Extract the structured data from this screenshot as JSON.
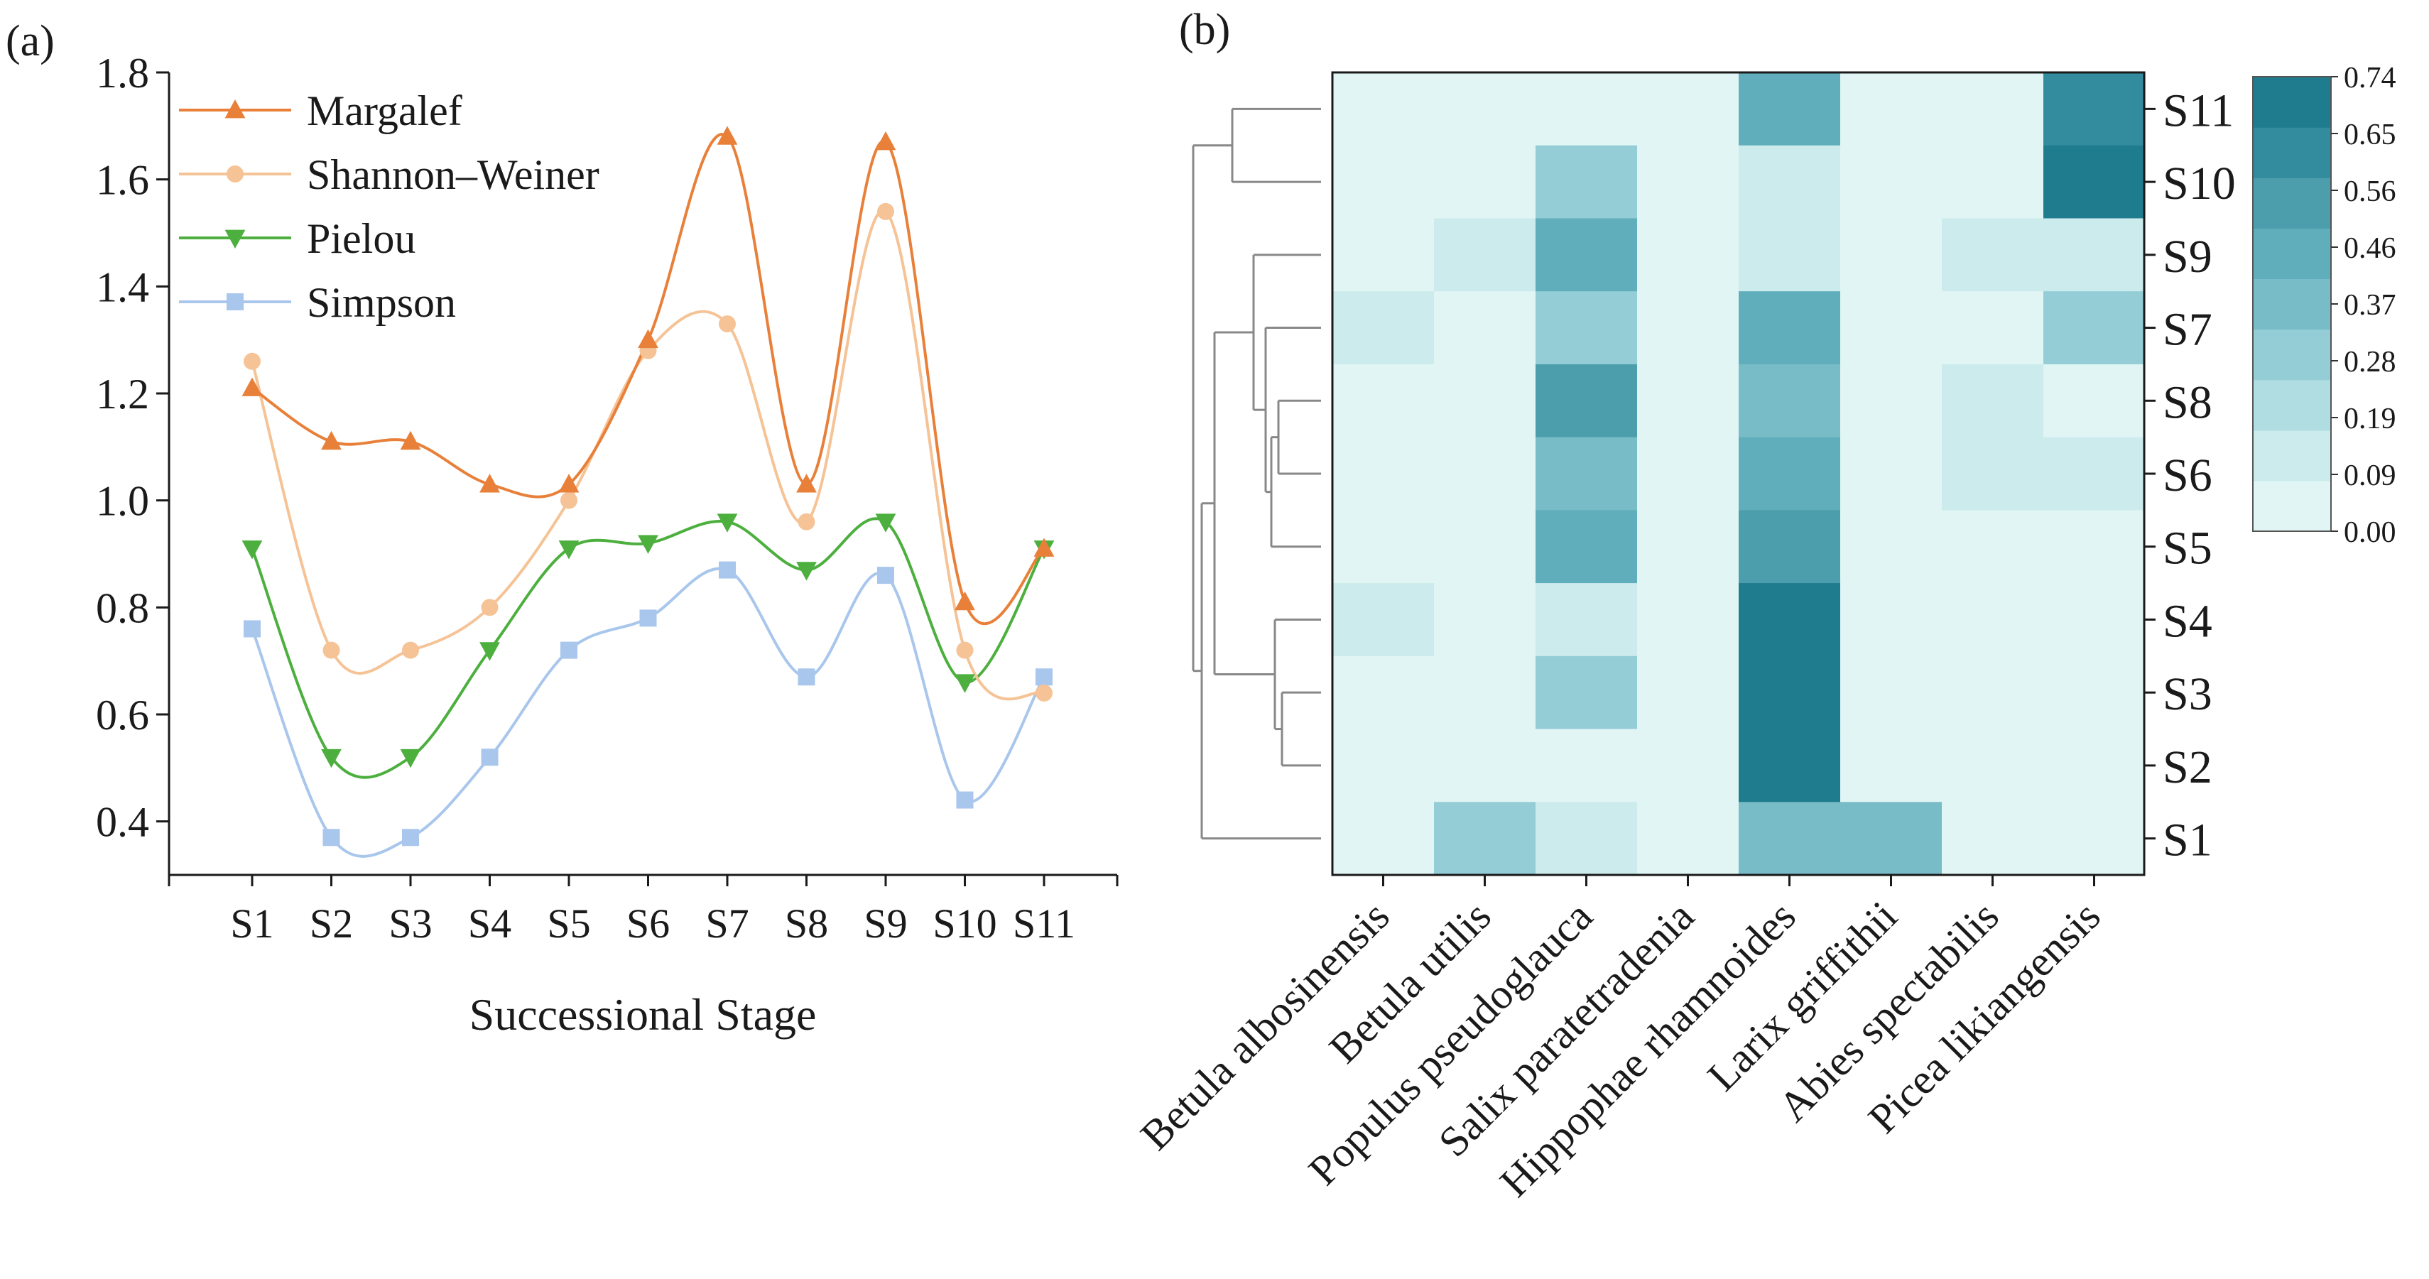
{
  "panel_labels": {
    "a": "(a)",
    "b": "(b)"
  },
  "colors": {
    "Margalef": "#e8803a",
    "Shannon–Weiner": "#f5c396",
    "Pielou": "#4caf3e",
    "Simpson": "#a9c6ec",
    "dendrogram": "#888888",
    "heat_scale": [
      "#e2f5f5",
      "#cbebec",
      "#b0dde2",
      "#94cdd6",
      "#78bcc8",
      "#60aebb",
      "#4c9ead",
      "#338c9e",
      "#1f7c8e"
    ]
  },
  "chart_data": [
    {
      "type": "line",
      "panel": "(a)",
      "title": "",
      "xlabel": "Successional Stage",
      "ylabel": "",
      "categories": [
        "S1",
        "S2",
        "S3",
        "S4",
        "S5",
        "S6",
        "S7",
        "S8",
        "S9",
        "S10",
        "S11"
      ],
      "ylim": [
        0.3,
        1.8
      ],
      "yticks": [
        "0.4",
        "0.6",
        "0.8",
        "1.0",
        "1.2",
        "1.4",
        "1.6",
        "1.8"
      ],
      "legend_position": "top-left",
      "series": [
        {
          "name": "Margalef",
          "marker": "triangle-up",
          "values": [
            1.21,
            1.11,
            1.11,
            1.03,
            1.03,
            1.3,
            1.68,
            1.03,
            1.67,
            0.81,
            0.91
          ]
        },
        {
          "name": "Shannon–Weiner",
          "marker": "circle",
          "values": [
            1.26,
            0.72,
            0.72,
            0.8,
            1.0,
            1.28,
            1.33,
            0.96,
            1.54,
            0.72,
            0.64
          ]
        },
        {
          "name": "Pielou",
          "marker": "triangle-down",
          "values": [
            0.91,
            0.52,
            0.52,
            0.72,
            0.91,
            0.92,
            0.96,
            0.87,
            0.96,
            0.66,
            0.91
          ]
        },
        {
          "name": "Simpson",
          "marker": "square",
          "values": [
            0.76,
            0.37,
            0.37,
            0.52,
            0.72,
            0.78,
            0.87,
            0.67,
            0.86,
            0.44,
            0.67
          ]
        }
      ]
    },
    {
      "type": "heatmap",
      "panel": "(b)",
      "title": "",
      "columns": [
        "Betula albosinensis",
        "Betula utilis",
        "Populus pseudoglauca",
        "Salix paratetradenia",
        "Hippophae rhamnoides",
        "Larix griffithii",
        "Abies spectabilis",
        "Picea likiangensis"
      ],
      "rows": [
        "S11",
        "S10",
        "S9",
        "S7",
        "S8",
        "S6",
        "S5",
        "S4",
        "S3",
        "S2",
        "S1"
      ],
      "values": [
        [
          0.0,
          0.0,
          0.0,
          0.0,
          0.42,
          0.0,
          0.0,
          0.62
        ],
        [
          0.0,
          0.0,
          0.24,
          0.0,
          0.12,
          0.0,
          0.0,
          0.74
        ],
        [
          0.0,
          0.12,
          0.46,
          0.0,
          0.12,
          0.0,
          0.12,
          0.12
        ],
        [
          0.12,
          0.0,
          0.24,
          0.0,
          0.46,
          0.0,
          0.0,
          0.24
        ],
        [
          0.0,
          0.0,
          0.56,
          0.0,
          0.33,
          0.0,
          0.12,
          0.0
        ],
        [
          0.0,
          0.0,
          0.33,
          0.0,
          0.46,
          0.0,
          0.12,
          0.12
        ],
        [
          0.0,
          0.0,
          0.46,
          0.0,
          0.56,
          0.0,
          0.0,
          0.0
        ],
        [
          0.12,
          0.0,
          0.12,
          0.0,
          0.74,
          0.0,
          0.0,
          0.0
        ],
        [
          0.0,
          0.0,
          0.24,
          0.0,
          0.74,
          0.0,
          0.0,
          0.0
        ],
        [
          0.0,
          0.0,
          0.0,
          0.0,
          0.74,
          0.0,
          0.0,
          0.0
        ],
        [
          0.0,
          0.24,
          0.12,
          0.0,
          0.37,
          0.37,
          0.0,
          0.0
        ]
      ],
      "colorbar": {
        "range": [
          0.0,
          0.74
        ],
        "ticks": [
          "0.74",
          "0.65",
          "0.56",
          "0.46",
          "0.37",
          "0.28",
          "0.19",
          "0.09",
          "0.00"
        ]
      },
      "dendrogram_side": "left"
    }
  ]
}
